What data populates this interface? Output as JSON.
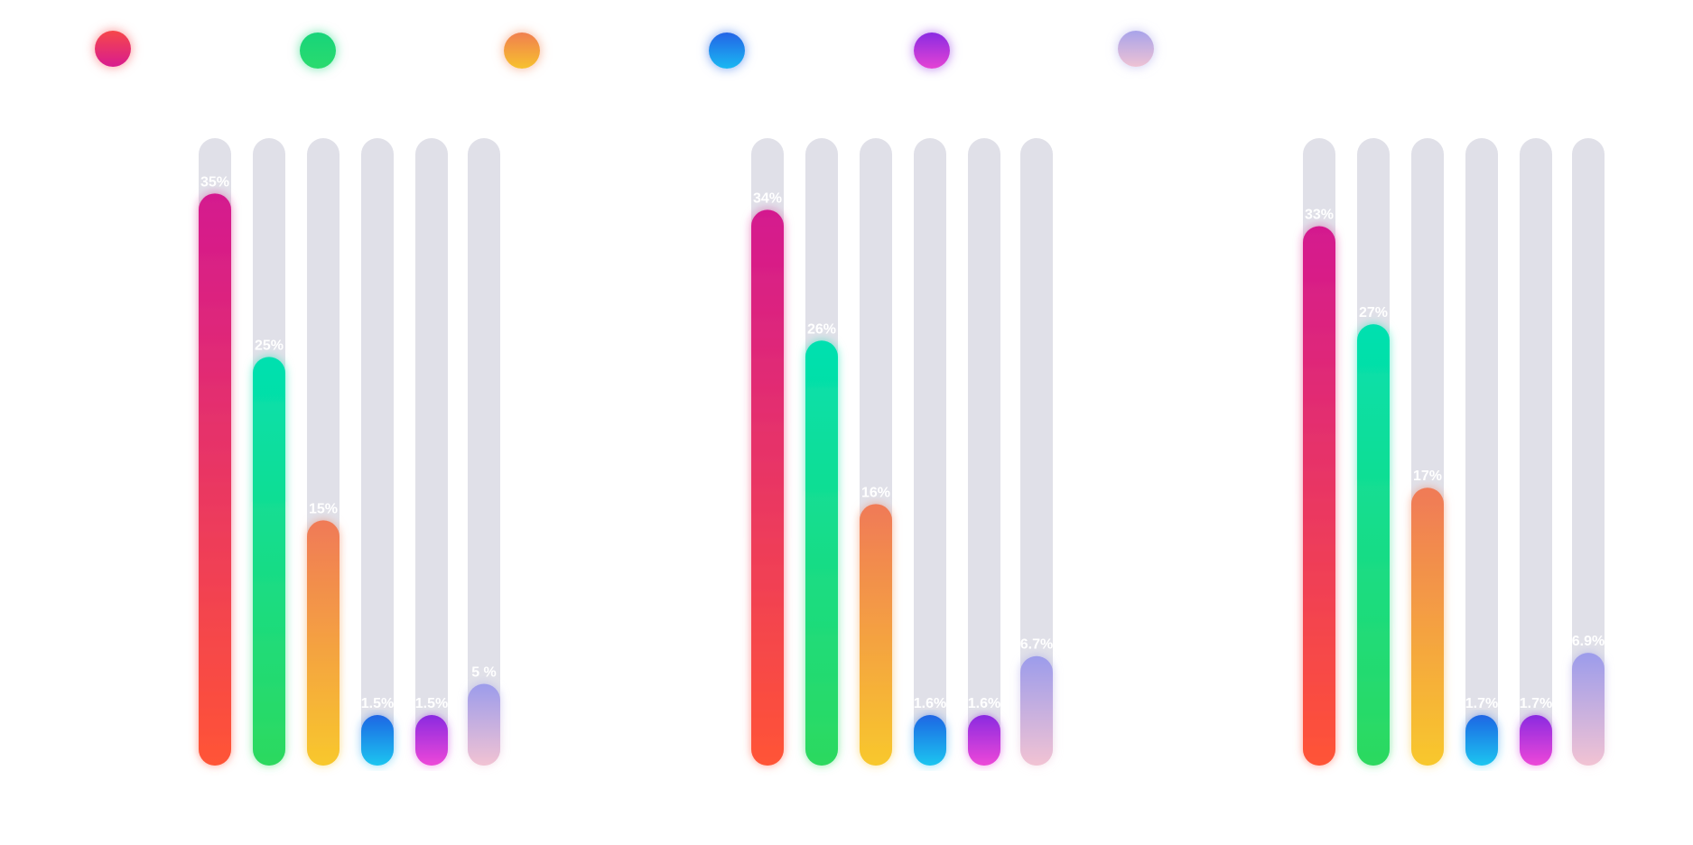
{
  "legend": [
    {
      "name": "dot-1",
      "color_top": "#f6484a",
      "color_bottom": "#d81b8f"
    },
    {
      "name": "dot-2",
      "color_top": "#17d47a",
      "color_bottom": "#2adb6e"
    },
    {
      "name": "dot-3",
      "color_top": "#f07f4f",
      "color_bottom": "#f7c12e"
    },
    {
      "name": "dot-4",
      "color_top": "#2364e6",
      "color_bottom": "#1ab8f2"
    },
    {
      "name": "dot-5",
      "color_top": "#8a2be2",
      "color_bottom": "#e543d4"
    },
    {
      "name": "dot-6",
      "color_top": "#a8a3ea",
      "color_bottom": "#eec2d4"
    }
  ],
  "series_colors": [
    {
      "top": "#d4198f",
      "bottom": "#ff5436"
    },
    {
      "top": "#02e0b0",
      "bottom": "#2dd95f"
    },
    {
      "top": "#f07a57",
      "bottom": "#f8c82c"
    },
    {
      "top": "#2066e4",
      "bottom": "#1ac6f0"
    },
    {
      "top": "#8a2ae0",
      "bottom": "#ee48d8"
    },
    {
      "top": "#9c9ceb",
      "bottom": "#f2c3d3"
    }
  ],
  "chart_data": [
    {
      "type": "bar",
      "values": [
        35,
        25,
        15,
        1.5,
        1.5,
        5
      ],
      "labels": [
        "35%",
        "25%",
        "15%",
        "1.5%",
        "1.5%",
        "5 %"
      ],
      "ylim": [
        0,
        38
      ]
    },
    {
      "type": "bar",
      "values": [
        34,
        26,
        16,
        1.6,
        1.6,
        6.7
      ],
      "labels": [
        "34%",
        "26%",
        "16%",
        "1.6%",
        "1.6%",
        "6.7%"
      ],
      "ylim": [
        0,
        38
      ]
    },
    {
      "type": "bar",
      "values": [
        33,
        27,
        17,
        1.7,
        1.7,
        6.9
      ],
      "labels": [
        "33%",
        "27%",
        "17%",
        "1.7%",
        "1.7%",
        "6.9%"
      ],
      "ylim": [
        0,
        38
      ]
    }
  ]
}
